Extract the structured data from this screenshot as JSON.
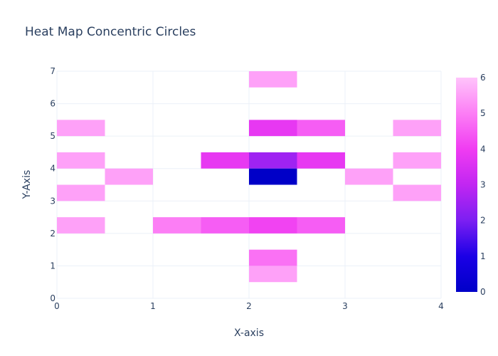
{
  "chart_data": {
    "type": "heatmap",
    "title": "Heat Map Concentric Circles",
    "xlabel": "X-axis",
    "ylabel": "Y-Axis",
    "xlim": [
      0,
      4
    ],
    "ylim": [
      0,
      7
    ],
    "x_ticks": [
      "0",
      "1",
      "2",
      "3",
      "4"
    ],
    "y_ticks": [
      "0",
      "1",
      "2",
      "3",
      "4",
      "5",
      "6",
      "7"
    ],
    "bin_width_x": 0.5,
    "bin_height_y": 0.5,
    "cells": [
      {
        "x": 2.0,
        "y": 6.5,
        "value": 5.5
      },
      {
        "x": 0.0,
        "y": 5.0,
        "value": 5.5
      },
      {
        "x": 2.0,
        "y": 5.0,
        "value": 3.8
      },
      {
        "x": 2.5,
        "y": 5.0,
        "value": 4.5
      },
      {
        "x": 3.5,
        "y": 5.0,
        "value": 5.5
      },
      {
        "x": 0.0,
        "y": 4.0,
        "value": 5.5
      },
      {
        "x": 1.5,
        "y": 4.0,
        "value": 3.8
      },
      {
        "x": 2.0,
        "y": 4.0,
        "value": 2.5
      },
      {
        "x": 2.5,
        "y": 4.0,
        "value": 3.8
      },
      {
        "x": 3.5,
        "y": 4.0,
        "value": 5.5
      },
      {
        "x": 0.5,
        "y": 3.5,
        "value": 5.5
      },
      {
        "x": 2.0,
        "y": 3.5,
        "value": 0.0
      },
      {
        "x": 3.0,
        "y": 3.5,
        "value": 5.5
      },
      {
        "x": 0.0,
        "y": 3.0,
        "value": 5.5
      },
      {
        "x": 3.5,
        "y": 3.0,
        "value": 5.5
      },
      {
        "x": 0.0,
        "y": 2.0,
        "value": 5.5
      },
      {
        "x": 1.0,
        "y": 2.0,
        "value": 5.0
      },
      {
        "x": 1.5,
        "y": 2.0,
        "value": 4.5
      },
      {
        "x": 2.0,
        "y": 2.0,
        "value": 4.1
      },
      {
        "x": 2.5,
        "y": 2.0,
        "value": 4.5
      },
      {
        "x": 2.0,
        "y": 1.0,
        "value": 4.8
      },
      {
        "x": 2.0,
        "y": 0.5,
        "value": 5.5
      }
    ],
    "colorbar": {
      "min": 0,
      "max": 6,
      "ticks": [
        "0",
        "1",
        "2",
        "3",
        "4",
        "5",
        "6"
      ],
      "colorscale": [
        [
          0.0,
          "#0000c8"
        ],
        [
          0.1667,
          "#1b00e6"
        ],
        [
          0.3333,
          "#7c1ff2"
        ],
        [
          0.5,
          "#c126f2"
        ],
        [
          0.6667,
          "#f03cf2"
        ],
        [
          0.8333,
          "#fc7ef5"
        ],
        [
          1.0,
          "#ffc4fb"
        ]
      ]
    },
    "grid": true,
    "legend": "colorbar-right"
  }
}
